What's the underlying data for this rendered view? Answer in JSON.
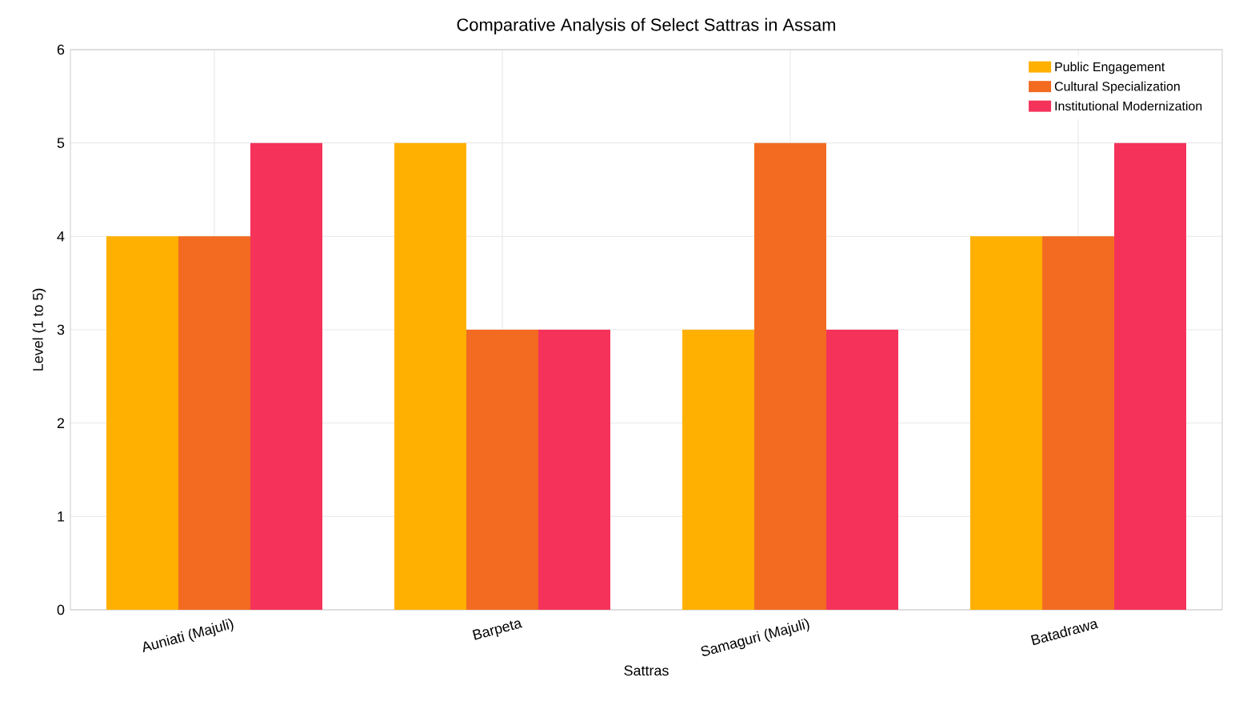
{
  "chart_data": {
    "type": "bar",
    "title": "Comparative Analysis of Select Sattras in Assam",
    "xlabel": "Sattras",
    "ylabel": "Level (1 to 5)",
    "categories": [
      "Auniati (Majuli)",
      "Barpeta",
      "Samaguri (Majuli)",
      "Batadrawa"
    ],
    "series": [
      {
        "name": "Public Engagement",
        "color": "#ffb000",
        "values": [
          4,
          5,
          3,
          4
        ]
      },
      {
        "name": "Cultural Specialization",
        "color": "#f26b21",
        "values": [
          4,
          3,
          5,
          4
        ]
      },
      {
        "name": "Institutional Modernization",
        "color": "#f5325a",
        "values": [
          5,
          3,
          3,
          5
        ]
      }
    ],
    "ylim": [
      0,
      6
    ],
    "yticks": [
      0,
      1,
      2,
      3,
      4,
      5,
      6
    ],
    "grid": true,
    "legend": "top right"
  }
}
